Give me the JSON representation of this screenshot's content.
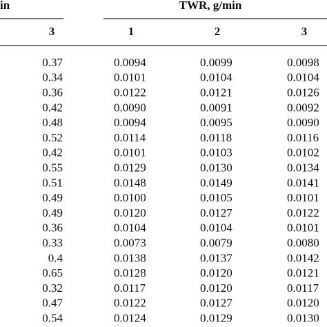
{
  "table": {
    "header": {
      "left": "in",
      "right": "TWR, g/min"
    },
    "columns": [
      "3",
      "1",
      "2",
      "3"
    ],
    "rows": [
      [
        "0.37",
        "0.0094",
        "0.0099",
        "0.0098"
      ],
      [
        "0.34",
        "0.0101",
        "0.0104",
        "0.0104"
      ],
      [
        "0.36",
        "0.0122",
        "0.0121",
        "0.0126"
      ],
      [
        "0.42",
        "0.0090",
        "0.0091",
        "0.0092"
      ],
      [
        "0.48",
        "0.0094",
        "0.0095",
        "0.0090"
      ],
      [
        "0.52",
        "0.0114",
        "0.0118",
        "0.0116"
      ],
      [
        "0.42",
        "0.0101",
        "0.0103",
        "0.0102"
      ],
      [
        "0.55",
        "0.0129",
        "0.0130",
        "0.0134"
      ],
      [
        "0.51",
        "0.0148",
        "0.0149",
        "0.0141"
      ],
      [
        "0.49",
        "0.0100",
        "0.0105",
        "0.0101"
      ],
      [
        "0.49",
        "0.0120",
        "0.0127",
        "0.0122"
      ],
      [
        "0.36",
        "0.0104",
        "0.0104",
        "0.0101"
      ],
      [
        "0.33",
        "0.0073",
        "0.0079",
        "0.0080"
      ],
      [
        "0.4",
        "0.0138",
        "0.0137",
        "0.0142"
      ],
      [
        "0.65",
        "0.0128",
        "0.0120",
        "0.0121"
      ],
      [
        "0.32",
        "0.0117",
        "0.0120",
        "0.0117"
      ],
      [
        "0.47",
        "0.0122",
        "0.0127",
        "0.0120"
      ],
      [
        "0.54",
        "0.0124",
        "0.0129",
        "0.0130"
      ]
    ]
  }
}
